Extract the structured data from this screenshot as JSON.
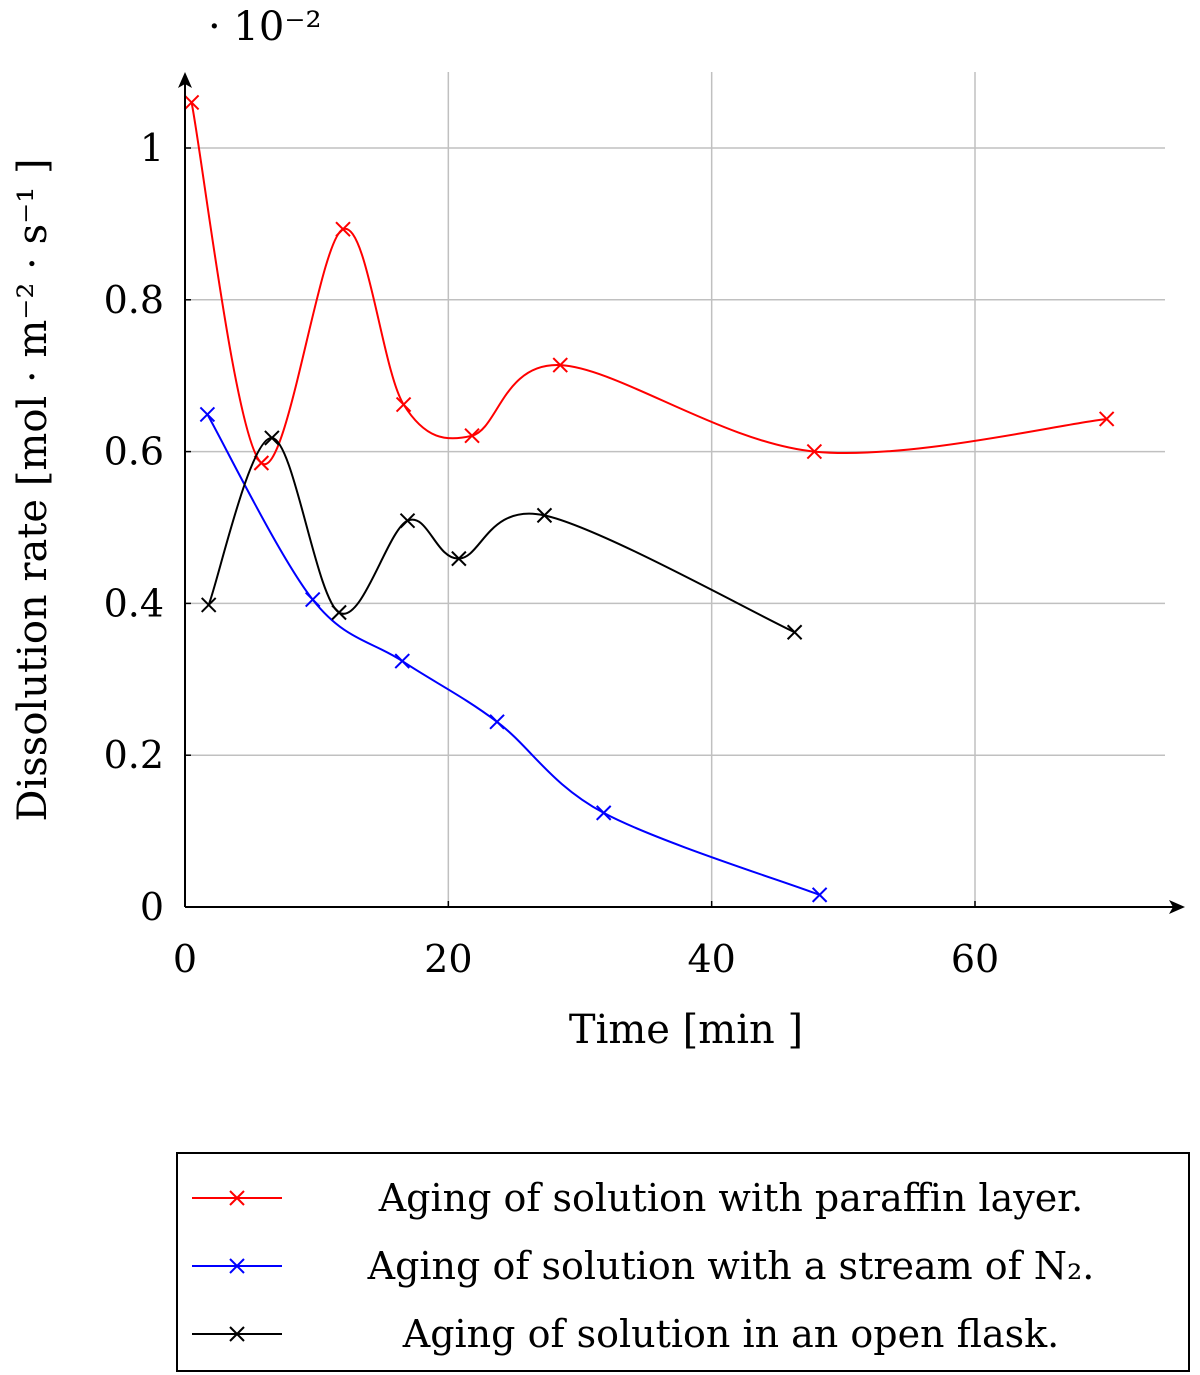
{
  "chart_data": {
    "type": "line",
    "title": "",
    "xlabel": "Time [min ]",
    "ylabel": "Dissolution rate [mol · m⁻² · s⁻¹ ]",
    "y_multiplier": "· 10⁻²",
    "xlim": [
      0,
      75
    ],
    "ylim": [
      0,
      1.1
    ],
    "x_ticks": [
      0,
      20,
      40,
      60
    ],
    "y_ticks": [
      0,
      0.2,
      0.4,
      0.6,
      0.8,
      1
    ],
    "x_tick_labels": [
      "0",
      "20",
      "40",
      "60"
    ],
    "y_tick_labels": [
      "0",
      "0.2",
      "0.4",
      "0.6",
      "0.8",
      "1"
    ],
    "grid": true,
    "legend_position": "bottom",
    "series": [
      {
        "name": "Aging of solution with paraffin layer.",
        "color": "#ff0000",
        "marker": "x",
        "x": [
          0.5,
          5.8,
          12.0,
          16.6,
          21.8,
          28.5,
          47.8,
          70.0
        ],
        "y": [
          1.06,
          0.585,
          0.893,
          0.662,
          0.621,
          0.714,
          0.6,
          0.643
        ]
      },
      {
        "name": "Aging of solution with a stream of N₂.",
        "color": "#0000ff",
        "marker": "x",
        "x": [
          1.7,
          9.7,
          16.5,
          23.7,
          31.8,
          48.2
        ],
        "y": [
          0.649,
          0.405,
          0.324,
          0.244,
          0.124,
          0.016
        ]
      },
      {
        "name": "Aging of solution in an open flask.",
        "color": "#000000",
        "marker": "x",
        "x": [
          1.8,
          6.6,
          11.7,
          16.9,
          20.8,
          27.3,
          46.3
        ],
        "y": [
          0.398,
          0.618,
          0.388,
          0.509,
          0.459,
          0.516,
          0.362
        ]
      }
    ]
  }
}
